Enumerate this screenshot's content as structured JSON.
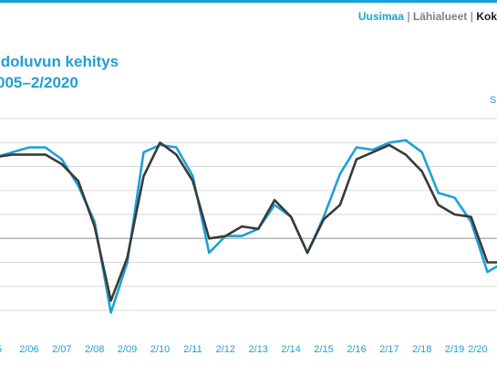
{
  "header": {
    "links": [
      {
        "label": "Uusimaa",
        "color": "#1ba1d6"
      },
      {
        "label": "Lähialueet",
        "color": "#7f7f7f"
      },
      {
        "label": "Kok",
        "color": "#1a1a1a"
      }
    ],
    "separator": "|"
  },
  "title": {
    "line1": "ldoluvun kehitys",
    "line2": "005–2/2020"
  },
  "corner_label": "S",
  "colors": {
    "accent": "#1ba1d6",
    "dark": "#3a3a3a",
    "grid": "#d9d9d9",
    "baseline": "#a6a6a6"
  },
  "chart_data": {
    "type": "line",
    "title": "",
    "xlabel": "",
    "ylabel": "",
    "categories": [
      "05",
      "2/06",
      "2/07",
      "2/08",
      "2/09",
      "2/10",
      "2/11",
      "2/12",
      "2/13",
      "2/14",
      "2/15",
      "2/16",
      "2/17",
      "2/18",
      "2/19",
      "2/20"
    ],
    "x": [
      0,
      0.5,
      1,
      1.5,
      2,
      2.5,
      3,
      3.5,
      4,
      4.5,
      5,
      5.5,
      6,
      6.5,
      7,
      7.5,
      8,
      8.5,
      9,
      9.5,
      10,
      10.5,
      11,
      11.5,
      12,
      12.5,
      13,
      13.5,
      14,
      14.5,
      15,
      15.5
    ],
    "series": [
      {
        "name": "",
        "color": "#1ba1d6",
        "values": [
          3.4,
          3.6,
          3.8,
          3.8,
          3.3,
          2.2,
          0.7,
          -3.1,
          -1.0,
          3.6,
          3.9,
          3.8,
          2.6,
          -0.6,
          0.1,
          0.1,
          0.4,
          1.4,
          0.9,
          -0.6,
          0.9,
          2.7,
          3.8,
          3.7,
          4.0,
          4.1,
          3.6,
          1.9,
          1.7,
          0.7,
          -1.4,
          -1.0
        ]
      },
      {
        "name": "",
        "color": "#3a3a3a",
        "values": [
          3.4,
          3.5,
          3.5,
          3.5,
          3.1,
          2.4,
          0.5,
          -2.6,
          -0.8,
          2.6,
          4.0,
          3.5,
          2.4,
          0.0,
          0.1,
          0.5,
          0.4,
          1.6,
          0.9,
          -0.6,
          0.8,
          1.4,
          3.3,
          3.6,
          3.9,
          3.5,
          2.8,
          1.4,
          1.0,
          0.9,
          -1.0,
          -1.0
        ]
      }
    ],
    "ylim": [
      -3.0,
      5.0
    ],
    "grid": true,
    "legend": "none"
  }
}
